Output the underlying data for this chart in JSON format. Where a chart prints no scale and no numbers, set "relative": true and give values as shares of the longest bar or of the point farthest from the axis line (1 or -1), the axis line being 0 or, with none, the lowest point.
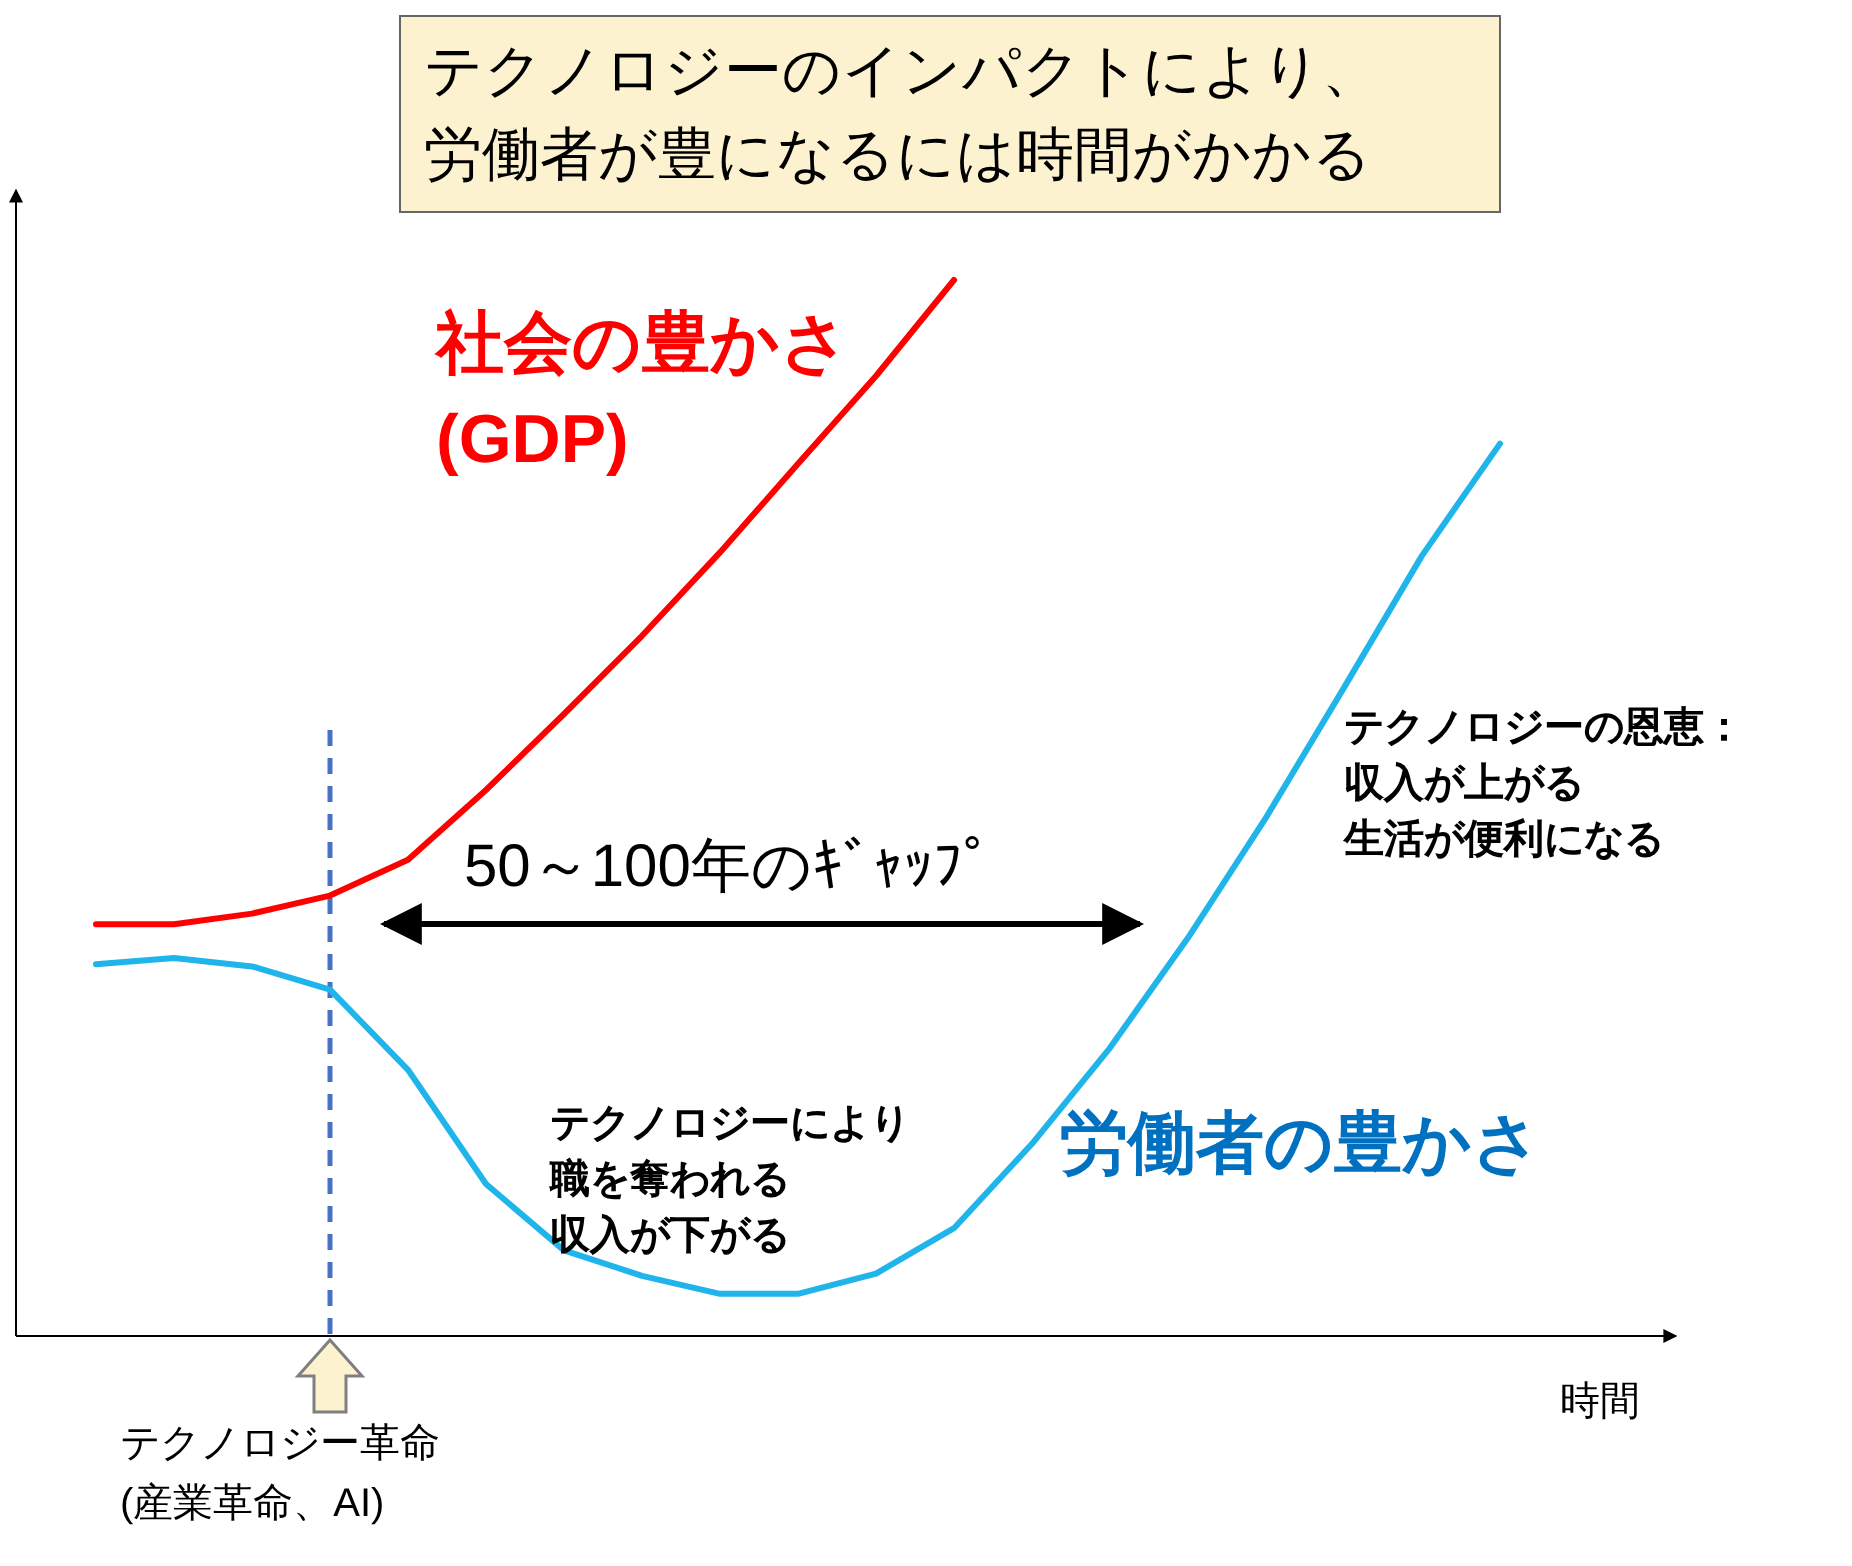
{
  "chart_data": {
    "type": "line",
    "relative": true,
    "title": "テクノロジーのインパクトにより、",
    "subtitle": "労働者が豊になるには時間がかかる",
    "xlabel": "時間",
    "categories": [
      null,
      null,
      null,
      null,
      null,
      null,
      null,
      null,
      null,
      null,
      null,
      null,
      null,
      null,
      null,
      null,
      null,
      null,
      null
    ],
    "series": [
      {
        "name": "社会の豊かさ\n(GDP)",
        "color": "#ff0000",
        "values": [
          0.39,
          0.39,
          0.4,
          0.417,
          0.451,
          0.517,
          0.589,
          0.663,
          0.742,
          0.826,
          0.909,
          1,
          null,
          null,
          null,
          null,
          null,
          null,
          null
        ]
      },
      {
        "name": "労働者の豊かさ",
        "color": "#1fb4ea",
        "values": [
          0.352,
          0.358,
          0.35,
          0.328,
          0.252,
          0.144,
          0.081,
          0.057,
          0.04,
          0.04,
          0.059,
          0.102,
          0.182,
          0.273,
          0.377,
          0.491,
          0.614,
          0.739,
          0.845
        ]
      }
    ],
    "annotations": [
      "50～100年のｷﾞｬｯﾌﾟ",
      "テクノロジーにより",
      "職を奪われる",
      "収入が下がる",
      "テクノロジーの恩恵：",
      "収入が上がる",
      "生活が便利になる",
      "テクノロジー革命\n(産業革命、AI)"
    ]
  }
}
